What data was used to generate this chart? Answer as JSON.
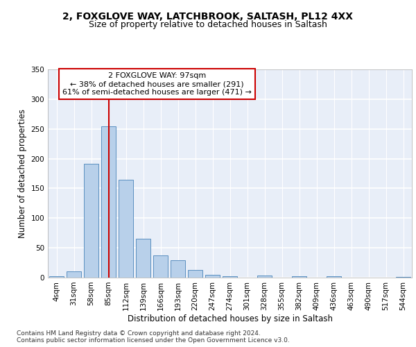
{
  "title_line1": "2, FOXGLOVE WAY, LATCHBROOK, SALTASH, PL12 4XX",
  "title_line2": "Size of property relative to detached houses in Saltash",
  "xlabel": "Distribution of detached houses by size in Saltash",
  "ylabel": "Number of detached properties",
  "bar_labels": [
    "4sqm",
    "31sqm",
    "58sqm",
    "85sqm",
    "112sqm",
    "139sqm",
    "166sqm",
    "193sqm",
    "220sqm",
    "247sqm",
    "274sqm",
    "301sqm",
    "328sqm",
    "355sqm",
    "382sqm",
    "409sqm",
    "436sqm",
    "463sqm",
    "490sqm",
    "517sqm",
    "544sqm"
  ],
  "bar_values": [
    2,
    11,
    191,
    254,
    165,
    65,
    37,
    29,
    13,
    5,
    2,
    0,
    3,
    0,
    2,
    0,
    2,
    0,
    0,
    0,
    1
  ],
  "bar_color": "#b8d0ea",
  "bar_edge_color": "#5a8fc0",
  "background_color": "#e8eef8",
  "grid_color": "#ffffff",
  "annotation_line1": "2 FOXGLOVE WAY: 97sqm",
  "annotation_line2": "← 38% of detached houses are smaller (291)",
  "annotation_line3": "61% of semi-detached houses are larger (471) →",
  "annotation_box_color": "#ffffff",
  "annotation_box_edge_color": "#cc0000",
  "vline_color": "#cc0000",
  "vline_bar_index": 3,
  "ylim_max": 350,
  "yticks": [
    0,
    50,
    100,
    150,
    200,
    250,
    300,
    350
  ],
  "footer_text": "Contains HM Land Registry data © Crown copyright and database right 2024.\nContains public sector information licensed under the Open Government Licence v3.0.",
  "title_fontsize": 10,
  "subtitle_fontsize": 9,
  "axis_label_fontsize": 8.5,
  "tick_fontsize": 7.5,
  "annotation_fontsize": 8,
  "footer_fontsize": 6.5
}
